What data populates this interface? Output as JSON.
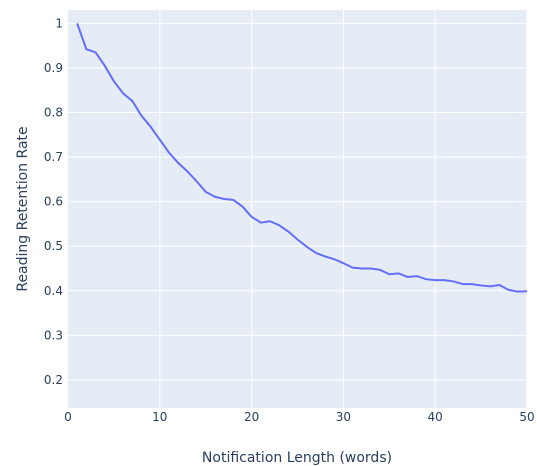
{
  "chart_data": {
    "type": "line",
    "title": "",
    "xlabel": "Notification Length (words)",
    "ylabel": "Reading Retention Rate",
    "xlim": [
      0,
      50
    ],
    "ylim": [
      0.137,
      1.03
    ],
    "xticks": [
      0,
      10,
      20,
      30,
      40,
      50
    ],
    "yticks": [
      0.2,
      0.3,
      0.4,
      0.5,
      0.6,
      0.7,
      0.8,
      0.9,
      1
    ],
    "ytick_labels": [
      "0.2",
      "0.3",
      "0.4",
      "0.5",
      "0.6",
      "0.7",
      "0.8",
      "0.9",
      "1"
    ],
    "grid": true,
    "colors": {
      "plot_bg": "#e5ecf6",
      "grid": "#ffffff",
      "line": "#636efa",
      "text": "#2a3f5f"
    },
    "series": [
      {
        "x": [
          1,
          2,
          3,
          4,
          5,
          6,
          7,
          8,
          9,
          10,
          11,
          12,
          13,
          14,
          15,
          16,
          17,
          18,
          19,
          20,
          21,
          22,
          23,
          24,
          25,
          26,
          27,
          28,
          29,
          30,
          31,
          32,
          33,
          34,
          35,
          36,
          37,
          38,
          39,
          40,
          41,
          42,
          43,
          44,
          45,
          46,
          47,
          48,
          49,
          50
        ],
        "values": [
          1.0,
          0.942,
          0.935,
          0.905,
          0.87,
          0.843,
          0.826,
          0.793,
          0.768,
          0.739,
          0.71,
          0.687,
          0.668,
          0.646,
          0.622,
          0.611,
          0.606,
          0.604,
          0.589,
          0.566,
          0.553,
          0.556,
          0.547,
          0.533,
          0.515,
          0.499,
          0.485,
          0.477,
          0.471,
          0.462,
          0.452,
          0.45,
          0.45,
          0.447,
          0.437,
          0.439,
          0.431,
          0.433,
          0.426,
          0.424,
          0.424,
          0.421,
          0.415,
          0.415,
          0.412,
          0.41,
          0.413,
          0.402,
          0.398,
          0.399
        ]
      }
    ]
  }
}
